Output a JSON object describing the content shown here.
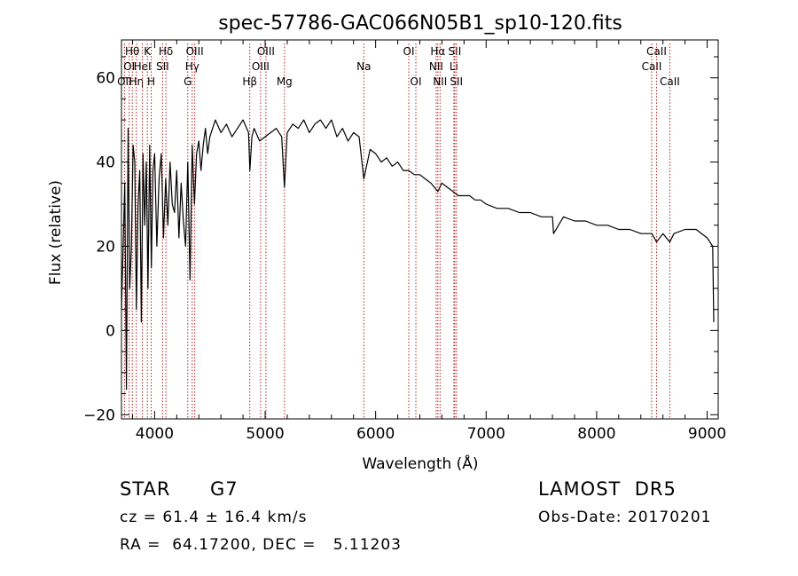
{
  "chart_data": {
    "type": "line",
    "title": "spec-57786-GAC066N05B1_sp10-120.fits",
    "xlabel": "Wavelength (Å)",
    "ylabel": "Flux (relative)",
    "xlim": [
      3700,
      9100
    ],
    "ylim": [
      -21,
      69
    ],
    "x_ticks": [
      4000,
      5000,
      6000,
      7000,
      8000,
      9000
    ],
    "y_ticks": [
      -20,
      0,
      20,
      40,
      60
    ],
    "grid": false,
    "line_color": "#000000",
    "marker_color": "#b22222",
    "series": [
      {
        "x": [
          3700,
          3715,
          3730,
          3745,
          3760,
          3775,
          3790,
          3805,
          3820,
          3835,
          3850,
          3865,
          3880,
          3895,
          3910,
          3925,
          3940,
          3955,
          3970,
          3985,
          4000,
          4020,
          4040,
          4060,
          4080,
          4100,
          4120,
          4140,
          4160,
          4180,
          4200,
          4220,
          4240,
          4260,
          4280,
          4300,
          4320,
          4340,
          4360,
          4380,
          4400,
          4420,
          4440,
          4460,
          4480,
          4500,
          4550,
          4600,
          4650,
          4700,
          4750,
          4800,
          4850,
          4862,
          4880,
          4900,
          4950,
          5000,
          5050,
          5100,
          5150,
          5175,
          5200,
          5250,
          5300,
          5350,
          5400,
          5450,
          5500,
          5550,
          5600,
          5650,
          5700,
          5750,
          5800,
          5850,
          5893,
          5950,
          6000,
          6050,
          6100,
          6150,
          6200,
          6250,
          6300,
          6350,
          6400,
          6450,
          6500,
          6563,
          6600,
          6650,
          6700,
          6750,
          6800,
          6850,
          6900,
          6950,
          7000,
          7100,
          7200,
          7300,
          7400,
          7500,
          7600,
          7610,
          7700,
          7800,
          7900,
          8000,
          8100,
          8200,
          8300,
          8400,
          8500,
          8542,
          8600,
          8662,
          8700,
          8800,
          8900,
          9000,
          9050,
          9060
        ],
        "y": [
          5,
          20,
          35,
          -14,
          48,
          10,
          20,
          44,
          40,
          5,
          30,
          38,
          2,
          42,
          25,
          40,
          10,
          44,
          15,
          38,
          42,
          20,
          36,
          42,
          22,
          36,
          25,
          40,
          30,
          28,
          38,
          22,
          35,
          26,
          20,
          40,
          12,
          44,
          30,
          42,
          45,
          38,
          44,
          48,
          42,
          46,
          50,
          47,
          49,
          46,
          48,
          50,
          47,
          38,
          46,
          48,
          45,
          46,
          47,
          48,
          46,
          34,
          47,
          49,
          48,
          50,
          47,
          49,
          50,
          48,
          50,
          46,
          48,
          45,
          47,
          46,
          36,
          43,
          42,
          40,
          41,
          39,
          40,
          38,
          38,
          37,
          37,
          36,
          35,
          33,
          35,
          34,
          33,
          32,
          32,
          32,
          31,
          31,
          30,
          29,
          29,
          28,
          28,
          27,
          27,
          23,
          27,
          26,
          26,
          25,
          25,
          24,
          24,
          23,
          23,
          21,
          23,
          21,
          23,
          24,
          24,
          22,
          20,
          2
        ]
      }
    ],
    "line_markers": [
      {
        "wave": 3727,
        "label": "OII",
        "row": 2
      },
      {
        "wave": 3770,
        "label": "OI",
        "row": 1
      },
      {
        "wave": 3798,
        "label": "Hθ",
        "row": 0
      },
      {
        "wave": 3835,
        "label": "Hη",
        "row": 2
      },
      {
        "wave": 3889,
        "label": "HeI",
        "row": 1
      },
      {
        "wave": 3934,
        "label": "K",
        "row": 0
      },
      {
        "wave": 3969,
        "label": "H",
        "row": 2
      },
      {
        "wave": 4072,
        "label": "SII",
        "row": 1
      },
      {
        "wave": 4102,
        "label": "Hδ",
        "row": 0
      },
      {
        "wave": 4300,
        "label": "G",
        "row": 2
      },
      {
        "wave": 4340,
        "label": "Hγ",
        "row": 1
      },
      {
        "wave": 4363,
        "label": "OIII",
        "row": 0
      },
      {
        "wave": 4861,
        "label": "Hβ",
        "row": 2
      },
      {
        "wave": 4959,
        "label": "OIII",
        "row": 1
      },
      {
        "wave": 5007,
        "label": "OIII",
        "row": 0
      },
      {
        "wave": 5175,
        "label": "Mg",
        "row": 2
      },
      {
        "wave": 5893,
        "label": "Na",
        "row": 1
      },
      {
        "wave": 6300,
        "label": "OI",
        "row": 0
      },
      {
        "wave": 6364,
        "label": "OI",
        "row": 2
      },
      {
        "wave": 6548,
        "label": "NII",
        "row": 1
      },
      {
        "wave": 6563,
        "label": "Hα",
        "row": 0
      },
      {
        "wave": 6583,
        "label": "NII",
        "row": 2
      },
      {
        "wave": 6708,
        "label": "Li",
        "row": 1
      },
      {
        "wave": 6716,
        "label": "SII",
        "row": 0
      },
      {
        "wave": 6731,
        "label": "SII",
        "row": 2
      },
      {
        "wave": 8498,
        "label": "CaII",
        "row": 1
      },
      {
        "wave": 8542,
        "label": "CaII",
        "row": 0
      },
      {
        "wave": 8662,
        "label": "CaII",
        "row": 2
      }
    ]
  },
  "info": {
    "object_class": "STAR",
    "subclass": "G7",
    "survey": "LAMOST  DR5",
    "redshift_line": "cz = 61.4 ± 16.4 km/s",
    "obs_date": "Obs-Date: 20170201",
    "coords": "RA =  64.17200, DEC =   5.11203"
  }
}
